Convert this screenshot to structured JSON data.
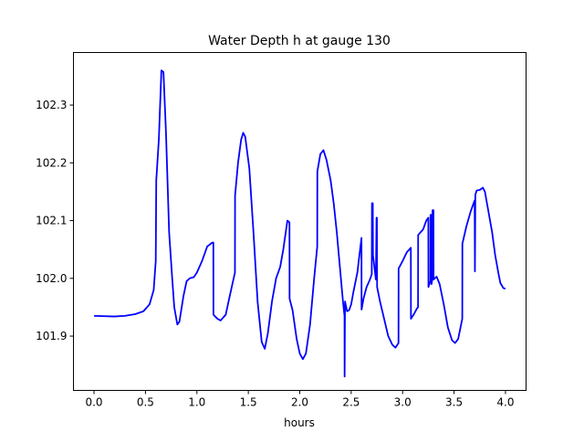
{
  "chart_data": {
    "type": "line",
    "title": "Water Depth h at gauge 130",
    "xlabel": "hours",
    "ylabel": "",
    "xlim": [
      -0.2,
      4.2
    ],
    "ylim": [
      101.806,
      102.391
    ],
    "xticks": [
      0.0,
      0.5,
      1.0,
      1.5,
      2.0,
      2.5,
      3.0,
      3.5,
      4.0
    ],
    "xtick_labels": [
      "0.0",
      "0.5",
      "1.0",
      "1.5",
      "2.0",
      "2.5",
      "3.0",
      "3.5",
      "4.0"
    ],
    "yticks": [
      101.9,
      102.0,
      102.1,
      102.2,
      102.3
    ],
    "ytick_labels": [
      "101.9",
      "102.0",
      "102.1",
      "102.2",
      "102.3"
    ],
    "grid": false,
    "legend": "none",
    "series": [
      {
        "color": "#0000ff",
        "points": [
          [
            0.0,
            101.935
          ],
          [
            0.2,
            101.934
          ],
          [
            0.3,
            101.935
          ],
          [
            0.4,
            101.938
          ],
          [
            0.48,
            101.943
          ],
          [
            0.54,
            101.955
          ],
          [
            0.58,
            101.98
          ],
          [
            0.6,
            102.03
          ],
          [
            0.605,
            102.17
          ],
          [
            0.63,
            102.24
          ],
          [
            0.655,
            102.36
          ],
          [
            0.675,
            102.357
          ],
          [
            0.7,
            102.25
          ],
          [
            0.73,
            102.08
          ],
          [
            0.76,
            102.0
          ],
          [
            0.78,
            101.95
          ],
          [
            0.81,
            101.92
          ],
          [
            0.83,
            101.925
          ],
          [
            0.87,
            101.97
          ],
          [
            0.9,
            101.995
          ],
          [
            0.93,
            102.0
          ],
          [
            0.97,
            102.002
          ],
          [
            1.0,
            102.01
          ],
          [
            1.05,
            102.03
          ],
          [
            1.1,
            102.055
          ],
          [
            1.15,
            102.062
          ],
          [
            1.16,
            102.062
          ],
          [
            1.161,
            101.937
          ],
          [
            1.2,
            101.93
          ],
          [
            1.23,
            101.927
          ],
          [
            1.28,
            101.937
          ],
          [
            1.32,
            101.97
          ],
          [
            1.37,
            102.01
          ],
          [
            1.371,
            102.143
          ],
          [
            1.4,
            102.2
          ],
          [
            1.43,
            102.24
          ],
          [
            1.45,
            102.252
          ],
          [
            1.47,
            102.245
          ],
          [
            1.51,
            102.19
          ],
          [
            1.55,
            102.08
          ],
          [
            1.59,
            101.96
          ],
          [
            1.63,
            101.89
          ],
          [
            1.66,
            101.878
          ],
          [
            1.69,
            101.905
          ],
          [
            1.73,
            101.96
          ],
          [
            1.77,
            102.0
          ],
          [
            1.81,
            102.02
          ],
          [
            1.84,
            102.05
          ],
          [
            1.88,
            102.1
          ],
          [
            1.9,
            102.097
          ],
          [
            1.901,
            101.965
          ],
          [
            1.93,
            101.945
          ],
          [
            1.97,
            101.895
          ],
          [
            2.0,
            101.87
          ],
          [
            2.03,
            101.86
          ],
          [
            2.06,
            101.87
          ],
          [
            2.1,
            101.92
          ],
          [
            2.14,
            102.0
          ],
          [
            2.17,
            102.055
          ],
          [
            2.171,
            102.185
          ],
          [
            2.2,
            102.215
          ],
          [
            2.23,
            102.222
          ],
          [
            2.26,
            102.205
          ],
          [
            2.3,
            102.17
          ],
          [
            2.33,
            102.13
          ],
          [
            2.36,
            102.08
          ],
          [
            2.39,
            102.02
          ],
          [
            2.42,
            101.96
          ],
          [
            2.435,
            101.935
          ],
          [
            2.436,
            101.83
          ],
          [
            2.44,
            101.96
          ],
          [
            2.46,
            101.943
          ],
          [
            2.48,
            101.945
          ],
          [
            2.5,
            101.955
          ],
          [
            2.52,
            101.975
          ],
          [
            2.56,
            102.01
          ],
          [
            2.58,
            102.04
          ],
          [
            2.6,
            102.07
          ],
          [
            2.601,
            101.946
          ],
          [
            2.62,
            101.965
          ],
          [
            2.65,
            101.985
          ],
          [
            2.68,
            101.997
          ],
          [
            2.7,
            102.007
          ],
          [
            2.702,
            102.13
          ],
          [
            2.71,
            102.13
          ],
          [
            2.712,
            102.04
          ],
          [
            2.74,
            101.998
          ],
          [
            2.746,
            102.105
          ],
          [
            2.75,
            102.105
          ],
          [
            2.752,
            101.985
          ],
          [
            2.78,
            101.96
          ],
          [
            2.82,
            101.93
          ],
          [
            2.86,
            101.9
          ],
          [
            2.9,
            101.885
          ],
          [
            2.93,
            101.88
          ],
          [
            2.96,
            101.888
          ],
          [
            2.961,
            102.017
          ],
          [
            3.0,
            102.03
          ],
          [
            3.04,
            102.045
          ],
          [
            3.08,
            102.053
          ],
          [
            3.081,
            101.93
          ],
          [
            3.11,
            101.938
          ],
          [
            3.14,
            101.948
          ],
          [
            3.15,
            101.95
          ],
          [
            3.151,
            102.075
          ],
          [
            3.2,
            102.085
          ],
          [
            3.23,
            102.1
          ],
          [
            3.25,
            102.105
          ],
          [
            3.251,
            101.985
          ],
          [
            3.27,
            101.995
          ],
          [
            3.271,
            102.11
          ],
          [
            3.28,
            102.11
          ],
          [
            3.281,
            101.99
          ],
          [
            3.29,
            102.0
          ],
          [
            3.291,
            102.118
          ],
          [
            3.3,
            102.118
          ],
          [
            3.301,
            101.998
          ],
          [
            3.33,
            102.003
          ],
          [
            3.36,
            101.99
          ],
          [
            3.4,
            101.955
          ],
          [
            3.44,
            101.915
          ],
          [
            3.48,
            101.893
          ],
          [
            3.51,
            101.888
          ],
          [
            3.54,
            101.895
          ],
          [
            3.58,
            101.93
          ],
          [
            3.581,
            102.06
          ],
          [
            3.62,
            102.09
          ],
          [
            3.66,
            102.115
          ],
          [
            3.7,
            102.135
          ],
          [
            3.703,
            102.012
          ],
          [
            3.707,
            102.145
          ],
          [
            3.72,
            102.152
          ],
          [
            3.75,
            102.153
          ],
          [
            3.78,
            102.157
          ],
          [
            3.8,
            102.15
          ],
          [
            3.83,
            102.12
          ],
          [
            3.87,
            102.08
          ],
          [
            3.9,
            102.04
          ],
          [
            3.93,
            102.01
          ],
          [
            3.95,
            101.992
          ],
          [
            3.98,
            101.983
          ],
          [
            4.0,
            101.982
          ]
        ]
      }
    ]
  }
}
